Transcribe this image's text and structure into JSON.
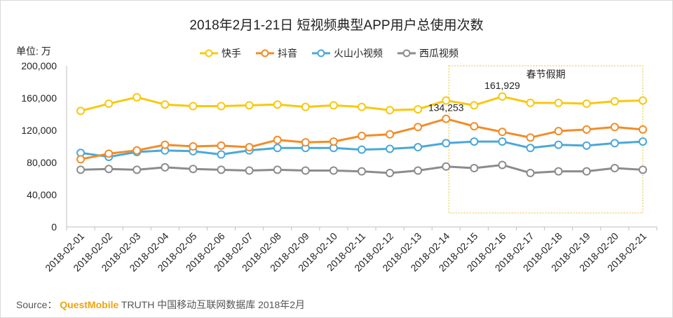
{
  "chart_data": {
    "type": "line",
    "title": "2018年2月1-21日 短视频典型APP用户总使用次数",
    "unit_label": "单位: 万",
    "categories": [
      "2018-02-01",
      "2018-02-02",
      "2018-02-03",
      "2018-02-04",
      "2018-02-05",
      "2018-02-06",
      "2018-02-07",
      "2018-02-08",
      "2018-02-09",
      "2018-02-10",
      "2018-02-11",
      "2018-02-12",
      "2018-02-13",
      "2018-02-14",
      "2018-02-15",
      "2018-02-16",
      "2018-02-17",
      "2018-02-18",
      "2018-02-19",
      "2018-02-20",
      "2018-02-21"
    ],
    "ylim": [
      0,
      200000
    ],
    "yticks": [
      0,
      40000,
      80000,
      120000,
      160000,
      200000
    ],
    "ytick_labels": [
      "0",
      "40,000",
      "80,000",
      "120,000",
      "160,000",
      "200,000"
    ],
    "legend_position": "top",
    "grid": false,
    "series": [
      {
        "name": "快手",
        "color": "#f9c80e",
        "values": [
          144000,
          153000,
          161000,
          152000,
          150000,
          150000,
          151000,
          152000,
          149000,
          151000,
          149000,
          145000,
          146000,
          157000,
          151000,
          161929,
          154000,
          154000,
          153000,
          156000,
          157000
        ]
      },
      {
        "name": "抖音",
        "color": "#f28c28",
        "values": [
          84000,
          91000,
          95000,
          102000,
          100000,
          101000,
          99000,
          108000,
          105000,
          106000,
          113000,
          115000,
          124000,
          134253,
          125000,
          118000,
          111000,
          119000,
          121000,
          124000,
          121000
        ]
      },
      {
        "name": "火山小视频",
        "color": "#4aa8d8",
        "values": [
          92000,
          87000,
          93000,
          95000,
          94000,
          90000,
          95000,
          98000,
          98000,
          98000,
          96000,
          97000,
          99000,
          104000,
          106000,
          106000,
          98000,
          102000,
          101000,
          104000,
          106000
        ]
      },
      {
        "name": "西瓜视频",
        "color": "#8c8c8c",
        "values": [
          71000,
          72000,
          71000,
          74000,
          72000,
          71000,
          70000,
          71000,
          70000,
          70000,
          69000,
          67000,
          70000,
          75000,
          73000,
          77000,
          67000,
          69000,
          69000,
          73000,
          71000
        ]
      }
    ],
    "annotations": [
      {
        "series": "抖音",
        "category": "2018-02-14",
        "label": "134,253"
      },
      {
        "series": "快手",
        "category": "2018-02-16",
        "label": "161,929"
      }
    ],
    "highlight": {
      "label": "春节假期",
      "from": "2018-02-15",
      "to": "2018-02-21",
      "color": "#e6c229"
    }
  },
  "source": {
    "prefix": "Source：",
    "brand": "QuestMobile",
    "text": "TRUTH 中国移动互联网数据库 2018年2月"
  }
}
